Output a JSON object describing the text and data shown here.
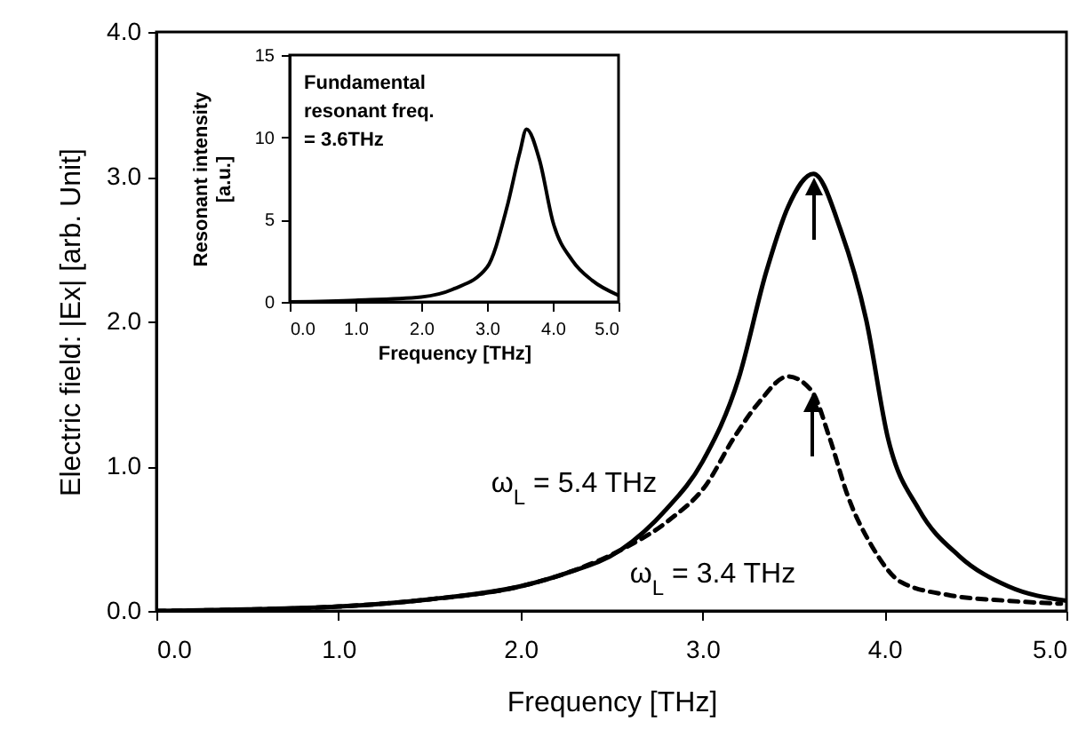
{
  "chart_data": [
    {
      "type": "line",
      "xlabel": "Frequency [THz]",
      "ylabel": "Electric field: |Ex| [arb. Unit]",
      "xlim": [
        0,
        5
      ],
      "ylim": [
        0,
        4
      ],
      "xticks": [
        {
          "value": 0,
          "label": "0.0"
        },
        {
          "value": 1,
          "label": "1.0"
        },
        {
          "value": 2,
          "label": "2.0"
        },
        {
          "value": 3,
          "label": "3.0"
        },
        {
          "value": 4,
          "label": "4.0"
        },
        {
          "value": 5,
          "label": "5.0"
        }
      ],
      "yticks": [
        {
          "value": 0,
          "label": "0.0"
        },
        {
          "value": 1,
          "label": "1.0"
        },
        {
          "value": 2,
          "label": "2.0"
        },
        {
          "value": 3,
          "label": "3.0"
        },
        {
          "value": 4,
          "label": "4.0"
        }
      ],
      "series": [
        {
          "color": "#000000",
          "line_style": "solid",
          "x": [
            0,
            0.5,
            1,
            1.5,
            2,
            2.25,
            2.55,
            2.8,
            3,
            3.2,
            3.35,
            3.47,
            3.61,
            3.76,
            3.9,
            4.02,
            4.19,
            4.41,
            4.68,
            5
          ],
          "values": [
            0,
            0.01,
            0.03,
            0.08,
            0.17,
            0.26,
            0.42,
            0.7,
            1.03,
            1.61,
            2.34,
            2.79,
            3.02,
            2.63,
            2.01,
            1.19,
            0.7,
            0.38,
            0.17,
            0.07
          ]
        },
        {
          "color": "#000000",
          "line_style": "dashed",
          "x": [
            0,
            0.5,
            1,
            1.5,
            2,
            2.25,
            2.55,
            2.82,
            3.02,
            3.17,
            3.31,
            3.47,
            3.6,
            3.7,
            3.8,
            3.93,
            4.09,
            4.35,
            4.68,
            4.97
          ],
          "values": [
            0,
            0.01,
            0.03,
            0.08,
            0.17,
            0.26,
            0.42,
            0.63,
            0.87,
            1.19,
            1.44,
            1.62,
            1.52,
            1.19,
            0.79,
            0.45,
            0.2,
            0.11,
            0.07,
            0.05
          ]
        }
      ],
      "annotations": [
        "ω$_{L}$ = 5.4 THz",
        "ω$_{L}$ = 3.4 THz"
      ],
      "marker": "none",
      "grid": false
    },
    {
      "type": "line",
      "xlabel": "Frequency [THz]",
      "ylabel": "Resonant intensity\n[a.u.]",
      "xlim": [
        0,
        5
      ],
      "ylim": [
        0,
        15
      ],
      "xticks": [
        {
          "value": 0,
          "label": "0.0"
        },
        {
          "value": 1,
          "label": "1.0"
        },
        {
          "value": 2,
          "label": "2.0"
        },
        {
          "value": 3,
          "label": "3.0"
        },
        {
          "value": 4,
          "label": "4.0"
        },
        {
          "value": 5,
          "label": "5.0"
        }
      ],
      "yticks": [
        0,
        5,
        10,
        15
      ],
      "series": [
        {
          "color": "#000000",
          "line_style": "solid",
          "x": [
            0,
            1,
            2,
            2.5,
            3,
            3.3,
            3.5,
            3.6,
            3.8,
            4,
            4.3,
            4.6,
            5
          ],
          "values": [
            0,
            0.1,
            0.3,
            0.8,
            2.1,
            5.7,
            9.1,
            10.5,
            8.6,
            4.9,
            2.5,
            1.3,
            0.4
          ]
        }
      ],
      "annotations": [
        "Fundamental\nresonant freq.\n= 3.6THz"
      ],
      "marker": "none",
      "grid": false
    }
  ]
}
